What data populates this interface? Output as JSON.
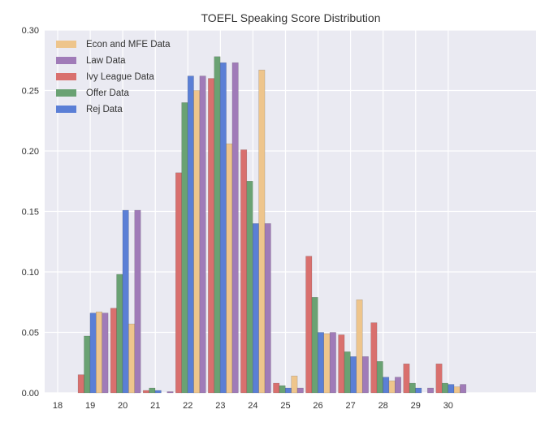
{
  "chart_data": {
    "type": "bar",
    "title": "TOEFL Speaking Score Distribution",
    "xlabel": "",
    "ylabel": "",
    "ylim": [
      0,
      0.3
    ],
    "xlim": [
      17.6,
      32.7
    ],
    "grid": true,
    "legend_position": "top-left",
    "x_ticks": [
      "18",
      "19",
      "20",
      "21",
      "22",
      "23",
      "24",
      "25",
      "26",
      "27",
      "28",
      "29",
      "30"
    ],
    "y_ticks": [
      "0.00",
      "0.05",
      "0.10",
      "0.15",
      "0.20",
      "0.25",
      "0.30"
    ],
    "categories": [
      19,
      20,
      21,
      22,
      23,
      24,
      25,
      26,
      27,
      28,
      29,
      30
    ],
    "series": [
      {
        "name": "Ivy League Data",
        "color": "#d9706e",
        "values": [
          0.015,
          0.07,
          0.002,
          0.182,
          0.26,
          0.201,
          0.008,
          0.113,
          0.048,
          0.058,
          0.024,
          0.024
        ]
      },
      {
        "name": "Offer Data",
        "color": "#6aa273",
        "values": [
          0.047,
          0.098,
          0.004,
          0.24,
          0.278,
          0.175,
          0.006,
          0.079,
          0.034,
          0.026,
          0.008,
          0.008
        ]
      },
      {
        "name": "Rej Data",
        "color": "#5b7fd6",
        "values": [
          0.066,
          0.151,
          0.002,
          0.262,
          0.273,
          0.14,
          0.004,
          0.05,
          0.03,
          0.013,
          0.004,
          0.007
        ]
      },
      {
        "name": "Econ and MFE Data",
        "color": "#eec58c",
        "values": [
          0.067,
          0.057,
          0.0,
          0.25,
          0.206,
          0.267,
          0.014,
          0.049,
          0.077,
          0.01,
          0.0,
          0.005
        ]
      },
      {
        "name": "Law Data",
        "color": "#a07bb8",
        "values": [
          0.066,
          0.151,
          0.001,
          0.262,
          0.273,
          0.14,
          0.004,
          0.05,
          0.03,
          0.013,
          0.004,
          0.007
        ]
      }
    ],
    "legend_order": [
      "Econ and MFE Data",
      "Law Data",
      "Ivy League Data",
      "Offer Data",
      "Rej Data"
    ]
  }
}
